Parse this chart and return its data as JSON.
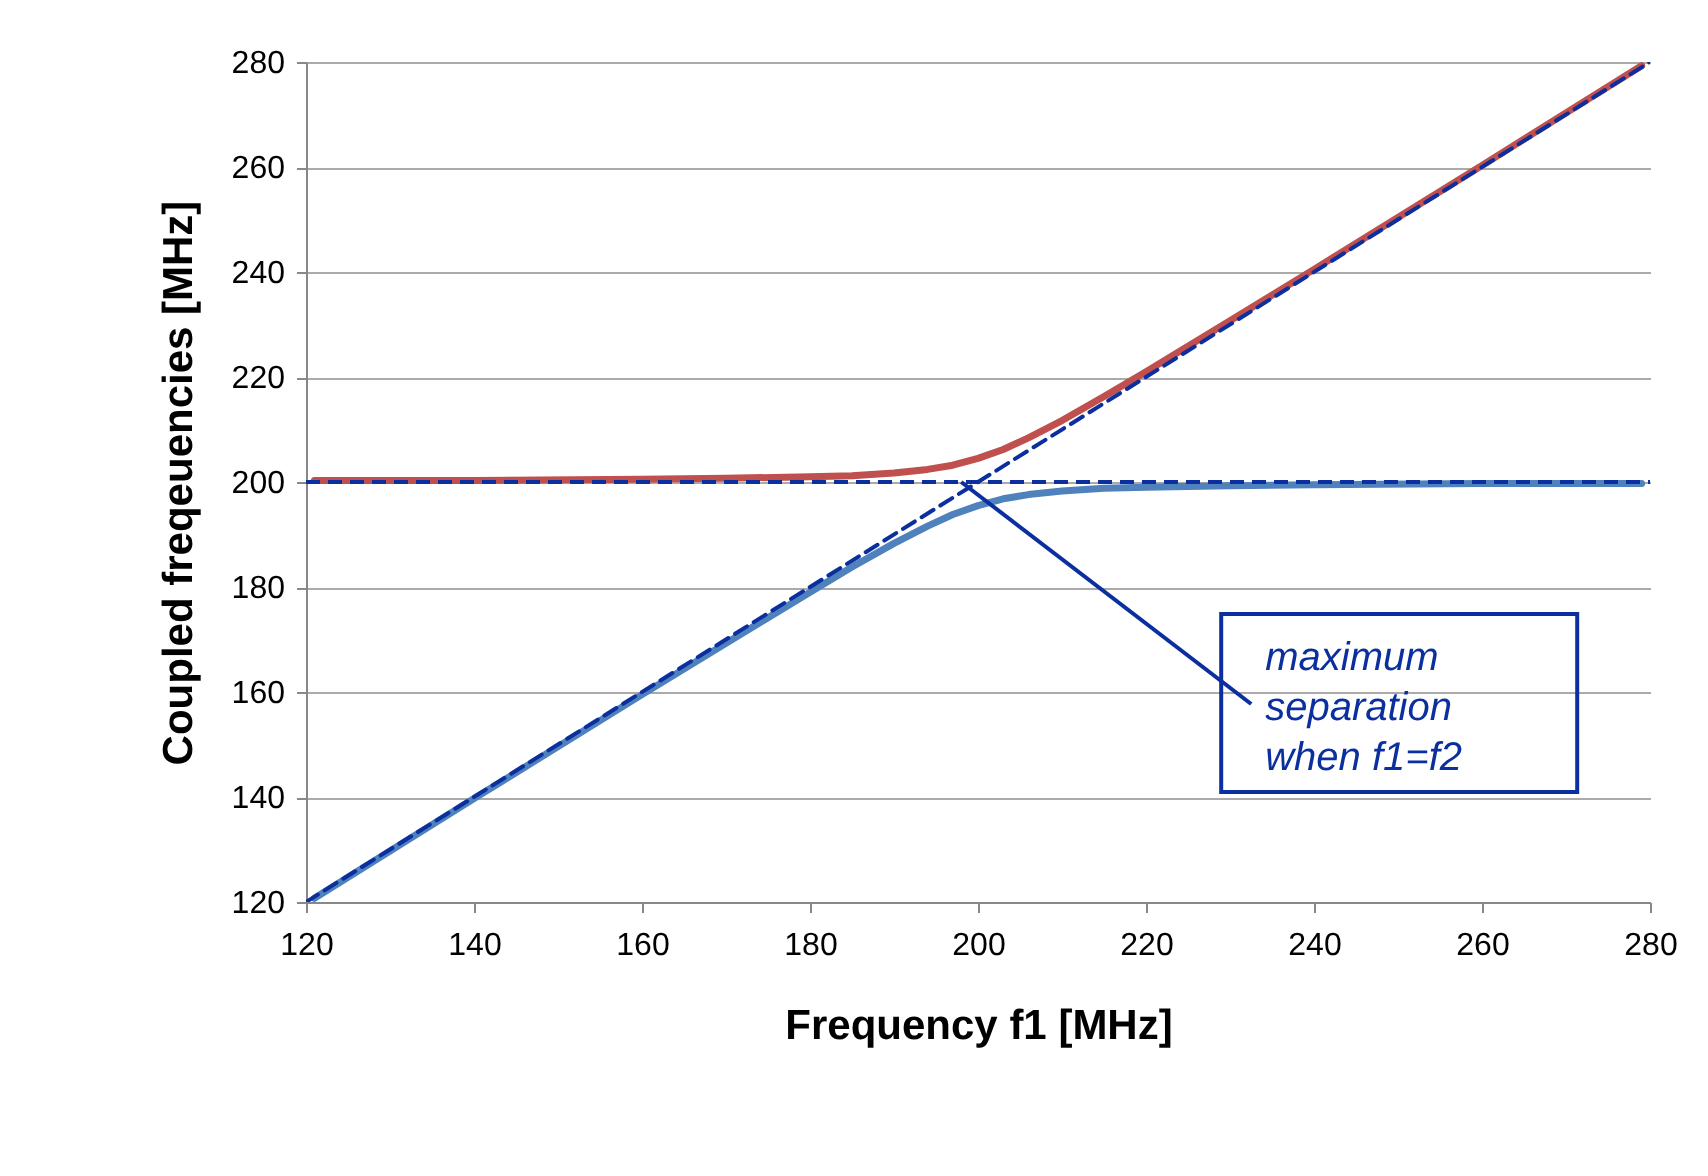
{
  "chart_data": {
    "type": "line",
    "xlabel": "Frequency f1 [MHz]",
    "ylabel": "Coupled freqeuencies [MHz]",
    "xlim": [
      120,
      280
    ],
    "xticks": [
      120,
      140,
      160,
      180,
      200,
      220,
      240,
      260,
      280
    ],
    "ylim": [
      120,
      280
    ],
    "yticks": [
      120,
      140,
      160,
      180,
      200,
      220,
      240,
      260,
      280
    ],
    "grid": "y",
    "series": [
      {
        "color": "#c0504d",
        "x": [
          121,
          140,
          160,
          170,
          180,
          185,
          190,
          194,
          197,
          200,
          203,
          206,
          210,
          215,
          220,
          230,
          240,
          260,
          279
        ],
        "values": [
          200.3,
          200.3,
          200.5,
          200.7,
          201.0,
          201.2,
          201.7,
          202.4,
          203.2,
          204.5,
          206.2,
          208.4,
          211.7,
          216.3,
          221.0,
          230.7,
          240.5,
          260.3,
          279.3
        ]
      },
      {
        "color": "#4f81bd",
        "x": [
          121,
          140,
          160,
          170,
          180,
          185,
          190,
          194,
          197,
          200,
          203,
          206,
          210,
          215,
          220,
          230,
          240,
          260,
          279
        ],
        "values": [
          120.7,
          139.7,
          159.5,
          169.3,
          179.0,
          183.8,
          188.3,
          191.6,
          193.8,
          195.5,
          196.8,
          197.6,
          198.3,
          198.8,
          199.0,
          199.3,
          199.5,
          199.7,
          199.7
        ]
      },
      {
        "type": "line",
        "line_style": "dashed",
        "color": "#0b2f9f",
        "x": [
          120,
          280
        ],
        "values": [
          120,
          280
        ]
      }
    ],
    "ref_lines": [
      {
        "axis": "y",
        "value": 200,
        "line_style": "dashed",
        "color": "#0b2f9f"
      }
    ],
    "annotations": [
      {
        "text": "maximum separation when f1=f2",
        "x": 198,
        "y": 200
      }
    ]
  }
}
